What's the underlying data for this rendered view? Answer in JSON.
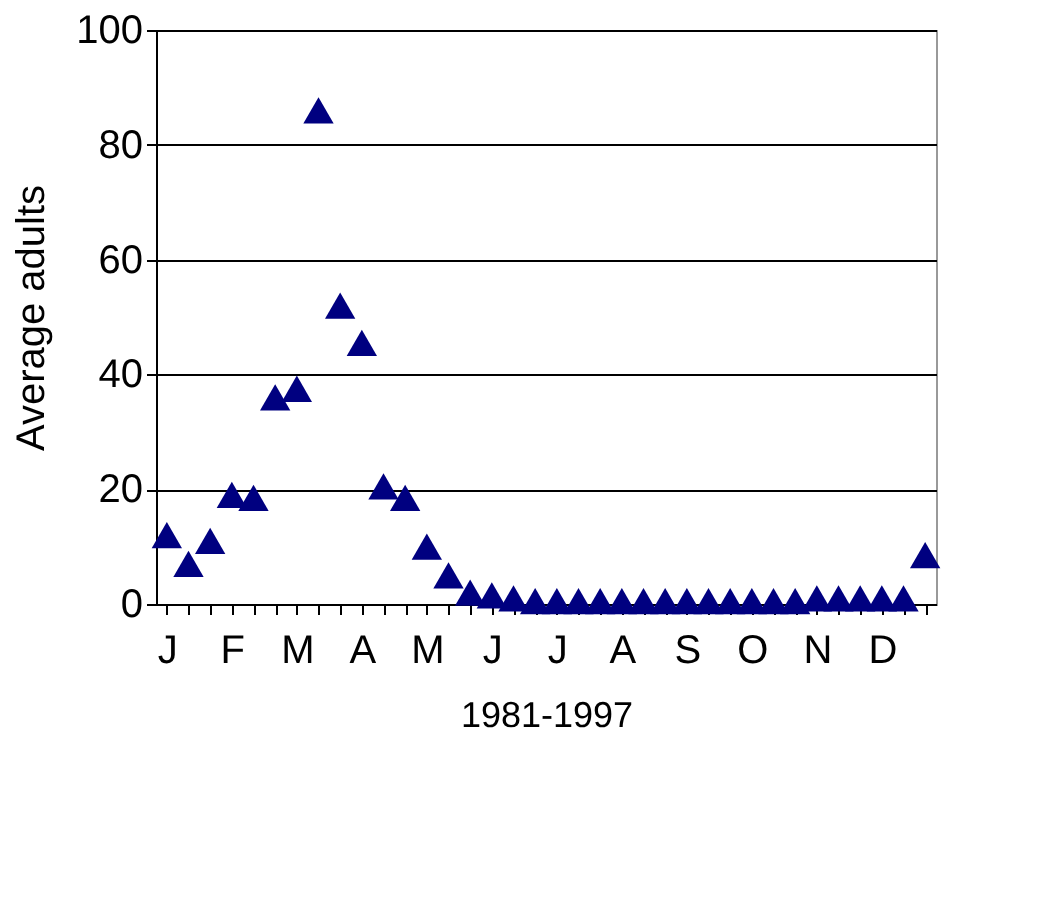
{
  "chart_data": {
    "type": "scatter",
    "xlabel": "1981-1997",
    "ylabel": "Average adults",
    "categories": [
      "J",
      null,
      null,
      "F",
      null,
      null,
      "M",
      null,
      null,
      "A",
      null,
      null,
      "M",
      null,
      null,
      "J",
      null,
      null,
      "J",
      null,
      null,
      "A",
      null,
      null,
      "S",
      null,
      null,
      "O",
      null,
      null,
      "N",
      null,
      null,
      "D",
      null,
      null
    ],
    "series": [
      {
        "color": "#000080",
        "values": [
          12,
          7,
          11,
          19,
          18.5,
          36,
          37.5,
          86,
          52,
          45.5,
          20.5,
          18.5,
          10,
          5,
          2,
          1.5,
          1,
          0.5,
          0.5,
          0.5,
          0.5,
          0.5,
          0.5,
          0.5,
          0.5,
          0.5,
          0.5,
          0.5,
          0.5,
          0.5,
          1,
          1,
          1,
          1,
          1,
          8.5
        ]
      }
    ],
    "ylim": [
      0,
      100
    ],
    "yticks": [
      0,
      20,
      40,
      60,
      80,
      100
    ],
    "grid": "y",
    "marker": "triangle"
  }
}
